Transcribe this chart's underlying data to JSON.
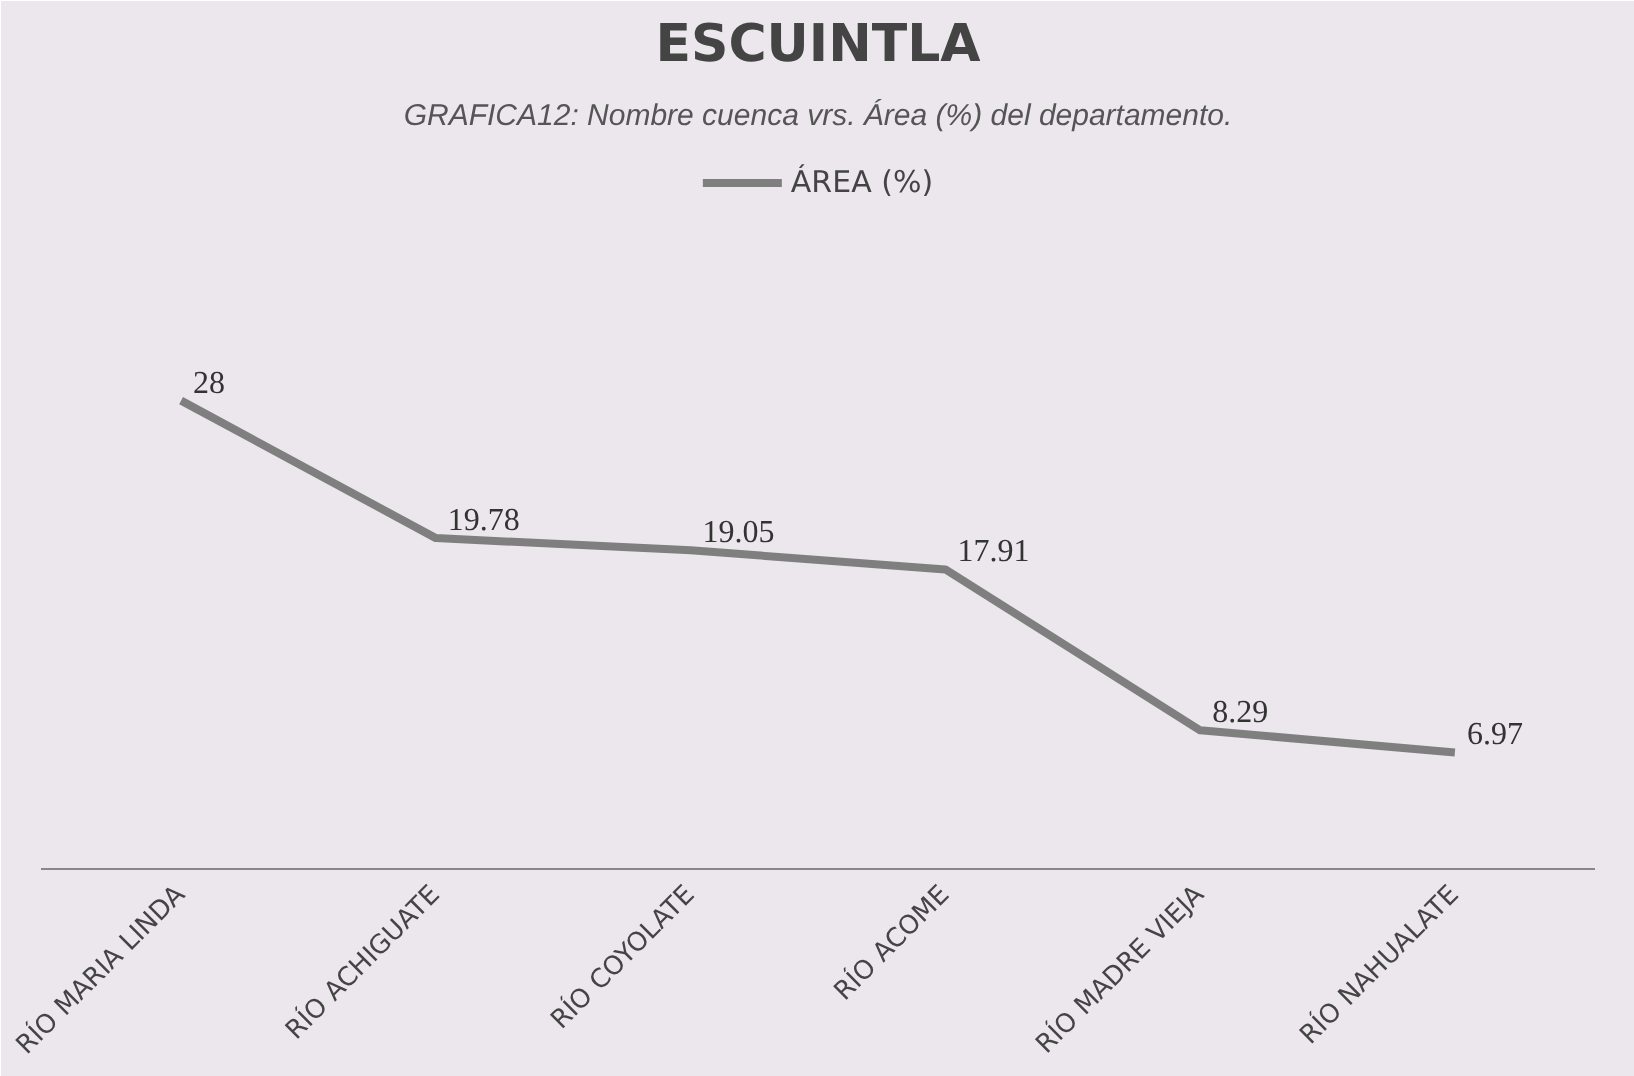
{
  "chart_data": {
    "type": "line",
    "title": "ESCUINTLA",
    "annotations": [
      "GRAFICA12: Nombre cuenca vrs. Área (%) del departamento."
    ],
    "categories": [
      "RÍO MARIA LINDA",
      "RÍO ACHIGUATE",
      "RÍO COYOLATE",
      "RÍO ACOME",
      "RÍO MADRE VIEJA",
      "RÍO NAHUALATE"
    ],
    "series": [
      {
        "name": "ÁREA (%)",
        "color": "#7f7f7f",
        "values": [
          28,
          19.78,
          19.05,
          17.91,
          8.29,
          6.97
        ]
      }
    ],
    "data_labels": true,
    "legend": "top",
    "grid": false,
    "marker": "none",
    "line_style": "solid"
  }
}
